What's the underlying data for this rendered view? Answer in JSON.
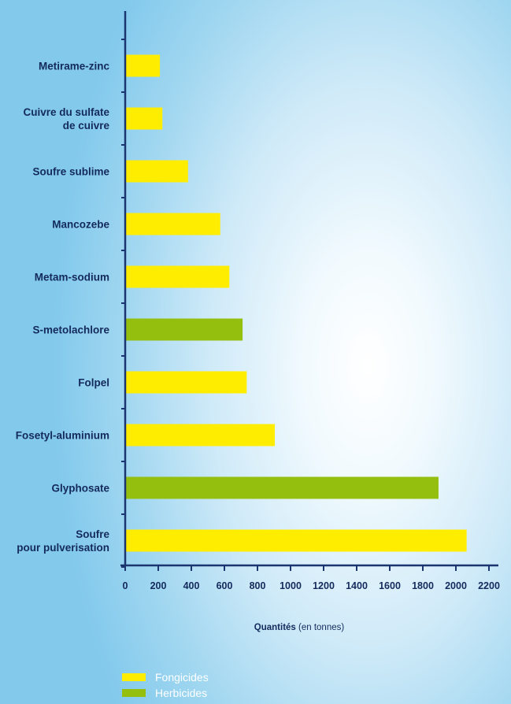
{
  "chart_data": {
    "type": "bar",
    "orientation": "horizontal",
    "categories": [
      "Metirame-zinc",
      "Cuivre du sulfate de cuivre",
      "Soufre sublime",
      "Mancozebe",
      "Metam-sodium",
      "S-metolachlore",
      "Folpel",
      "Fosetyl-aluminium",
      "Glyphosate",
      "Soufre pour pulverisation"
    ],
    "category_lines": [
      [
        "Metirame-zinc"
      ],
      [
        "Cuivre du sulfate",
        "de cuivre"
      ],
      [
        "Soufre sublime"
      ],
      [
        "Mancozebe"
      ],
      [
        "Metam-sodium"
      ],
      [
        "S-metolachlore"
      ],
      [
        "Folpel"
      ],
      [
        "Fosetyl-aluminium"
      ],
      [
        "Glyphosate"
      ],
      [
        "Soufre",
        "pour pulverisation"
      ]
    ],
    "values": [
      210,
      225,
      380,
      575,
      630,
      710,
      735,
      905,
      1895,
      2065
    ],
    "groups": [
      "Fongicides",
      "Fongicides",
      "Fongicides",
      "Fongicides",
      "Fongicides",
      "Herbicides",
      "Fongicides",
      "Fongicides",
      "Herbicides",
      "Fongicides"
    ],
    "legend": [
      {
        "name": "Fongicides",
        "color": "#ffed00"
      },
      {
        "name": "Herbicides",
        "color": "#95bf0f"
      }
    ],
    "xticks": [
      0,
      200,
      400,
      600,
      800,
      1000,
      1200,
      1400,
      1600,
      1800,
      2000,
      2200
    ],
    "xlim": [
      0,
      2200
    ],
    "xlabel_bold": "Quantités",
    "xlabel_rest": " (en tonnes)",
    "legend_position": "bottom-left",
    "grid": false,
    "axis_color": "#1a3570"
  }
}
